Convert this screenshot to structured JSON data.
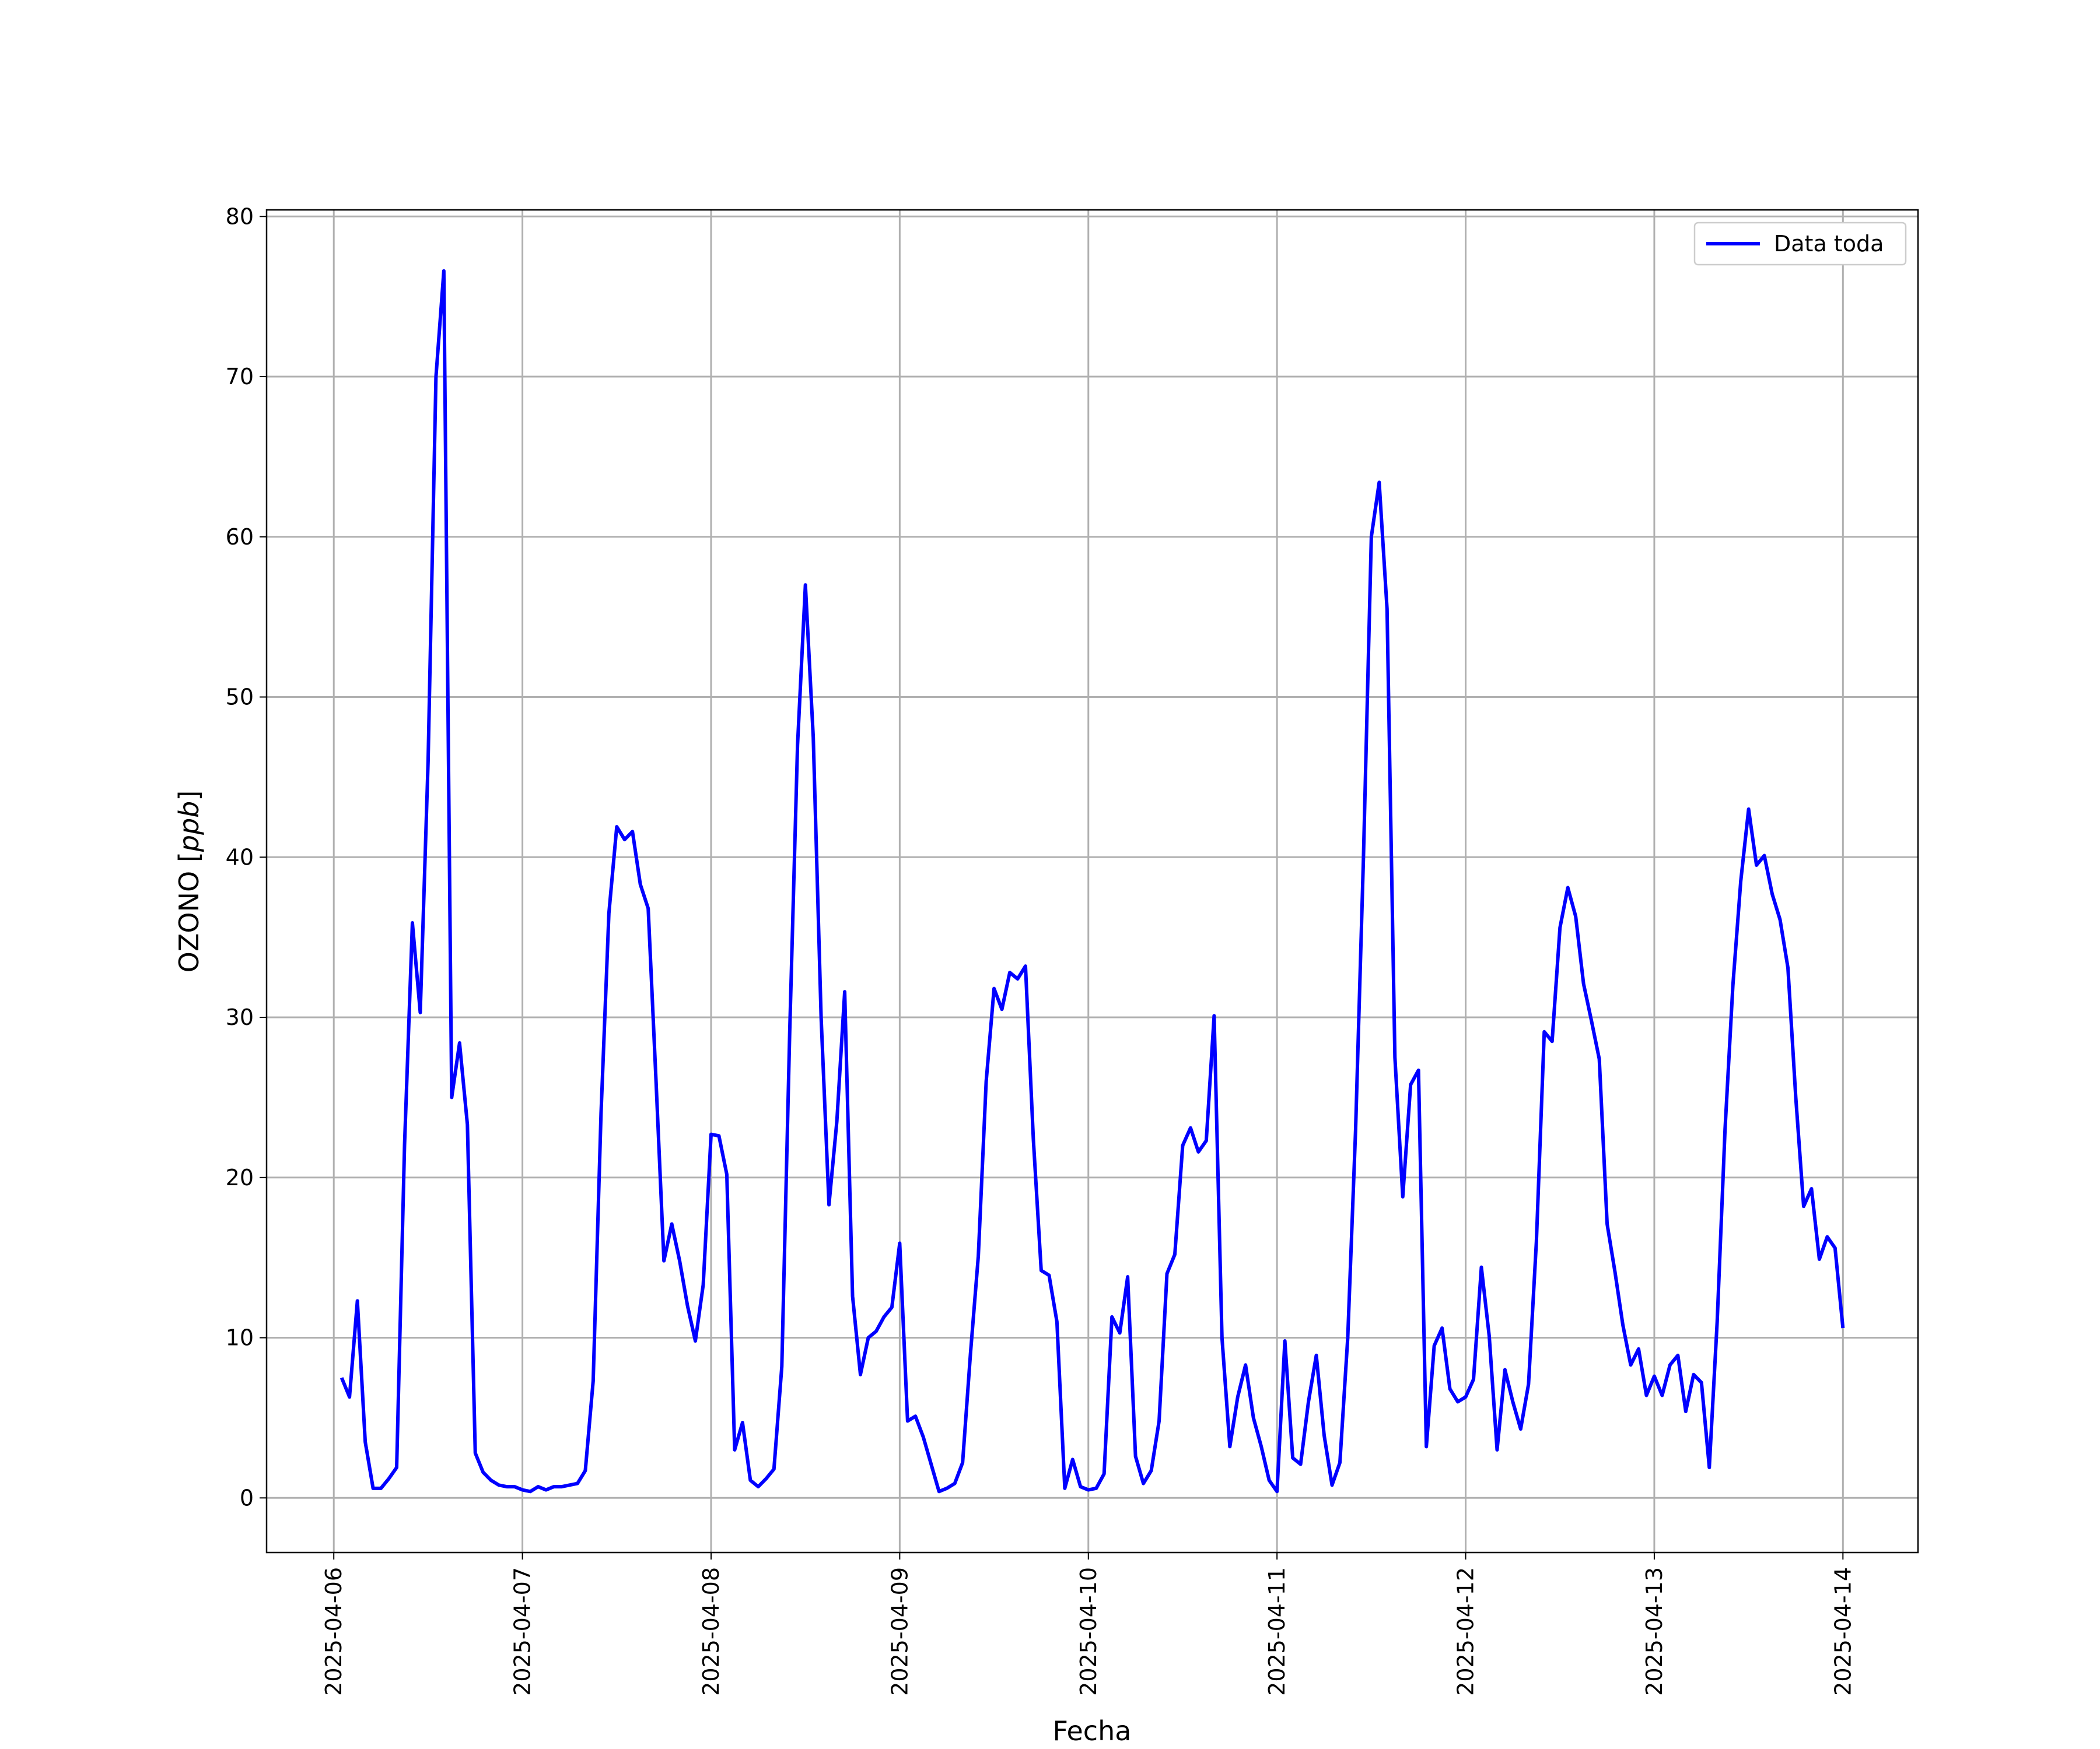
{
  "chart_data": {
    "type": "line",
    "xlabel": "Fecha",
    "ylabel": "OZONO [ppb]",
    "x": [
      "2025-04-06T01:00",
      "2025-04-06T02:00",
      "2025-04-06T03:00",
      "2025-04-06T04:00",
      "2025-04-06T05:00",
      "2025-04-06T06:00",
      "2025-04-06T07:00",
      "2025-04-06T08:00",
      "2025-04-06T09:00",
      "2025-04-06T10:00",
      "2025-04-06T11:00",
      "2025-04-06T12:00",
      "2025-04-06T13:00",
      "2025-04-06T14:00",
      "2025-04-06T15:00",
      "2025-04-06T16:00",
      "2025-04-06T17:00",
      "2025-04-06T18:00",
      "2025-04-06T19:00",
      "2025-04-06T20:00",
      "2025-04-06T21:00",
      "2025-04-06T22:00",
      "2025-04-06T23:00",
      "2025-04-07T00:00",
      "2025-04-07T01:00",
      "2025-04-07T02:00",
      "2025-04-07T03:00",
      "2025-04-07T04:00",
      "2025-04-07T05:00",
      "2025-04-07T06:00",
      "2025-04-07T07:00",
      "2025-04-07T08:00",
      "2025-04-07T09:00",
      "2025-04-07T10:00",
      "2025-04-07T11:00",
      "2025-04-07T12:00",
      "2025-04-07T13:00",
      "2025-04-07T14:00",
      "2025-04-07T15:00",
      "2025-04-07T16:00",
      "2025-04-07T17:00",
      "2025-04-07T18:00",
      "2025-04-07T19:00",
      "2025-04-07T20:00",
      "2025-04-07T21:00",
      "2025-04-07T22:00",
      "2025-04-07T23:00",
      "2025-04-08T00:00",
      "2025-04-08T01:00",
      "2025-04-08T02:00",
      "2025-04-08T03:00",
      "2025-04-08T04:00",
      "2025-04-08T05:00",
      "2025-04-08T06:00",
      "2025-04-08T07:00",
      "2025-04-08T08:00",
      "2025-04-08T09:00",
      "2025-04-08T10:00",
      "2025-04-08T11:00",
      "2025-04-08T12:00",
      "2025-04-08T13:00",
      "2025-04-08T14:00",
      "2025-04-08T15:00",
      "2025-04-08T16:00",
      "2025-04-08T17:00",
      "2025-04-08T18:00",
      "2025-04-08T19:00",
      "2025-04-08T20:00",
      "2025-04-08T21:00",
      "2025-04-08T22:00",
      "2025-04-08T23:00",
      "2025-04-09T00:00",
      "2025-04-09T01:00",
      "2025-04-09T02:00",
      "2025-04-09T03:00",
      "2025-04-09T04:00",
      "2025-04-09T05:00",
      "2025-04-09T06:00",
      "2025-04-09T07:00",
      "2025-04-09T08:00",
      "2025-04-09T09:00",
      "2025-04-09T10:00",
      "2025-04-09T11:00",
      "2025-04-09T12:00",
      "2025-04-09T13:00",
      "2025-04-09T14:00",
      "2025-04-09T15:00",
      "2025-04-09T16:00",
      "2025-04-09T17:00",
      "2025-04-09T18:00",
      "2025-04-09T19:00",
      "2025-04-09T20:00",
      "2025-04-09T21:00",
      "2025-04-09T22:00",
      "2025-04-09T23:00",
      "2025-04-10T00:00",
      "2025-04-10T01:00",
      "2025-04-10T02:00",
      "2025-04-10T03:00",
      "2025-04-10T04:00",
      "2025-04-10T05:00",
      "2025-04-10T06:00",
      "2025-04-10T07:00",
      "2025-04-10T08:00",
      "2025-04-10T09:00",
      "2025-04-10T10:00",
      "2025-04-10T11:00",
      "2025-04-10T12:00",
      "2025-04-10T13:00",
      "2025-04-10T14:00",
      "2025-04-10T15:00",
      "2025-04-10T16:00",
      "2025-04-10T17:00",
      "2025-04-10T18:00",
      "2025-04-10T19:00",
      "2025-04-10T20:00",
      "2025-04-10T21:00",
      "2025-04-10T22:00",
      "2025-04-10T23:00",
      "2025-04-11T00:00",
      "2025-04-11T01:00",
      "2025-04-11T02:00",
      "2025-04-11T03:00",
      "2025-04-11T04:00",
      "2025-04-11T05:00",
      "2025-04-11T06:00",
      "2025-04-11T07:00",
      "2025-04-11T08:00",
      "2025-04-11T09:00",
      "2025-04-11T10:00",
      "2025-04-11T11:00",
      "2025-04-11T12:00",
      "2025-04-11T13:00",
      "2025-04-11T14:00",
      "2025-04-11T15:00",
      "2025-04-11T16:00",
      "2025-04-11T17:00",
      "2025-04-11T18:00",
      "2025-04-11T19:00",
      "2025-04-11T20:00",
      "2025-04-11T21:00",
      "2025-04-11T22:00",
      "2025-04-11T23:00",
      "2025-04-12T00:00",
      "2025-04-12T01:00",
      "2025-04-12T02:00",
      "2025-04-12T03:00",
      "2025-04-12T04:00",
      "2025-04-12T05:00",
      "2025-04-12T06:00",
      "2025-04-12T07:00",
      "2025-04-12T08:00",
      "2025-04-12T09:00",
      "2025-04-12T10:00",
      "2025-04-12T11:00",
      "2025-04-12T12:00",
      "2025-04-12T13:00",
      "2025-04-12T14:00",
      "2025-04-12T15:00",
      "2025-04-12T16:00",
      "2025-04-12T17:00",
      "2025-04-12T18:00",
      "2025-04-12T19:00",
      "2025-04-12T20:00",
      "2025-04-12T21:00",
      "2025-04-12T22:00",
      "2025-04-12T23:00",
      "2025-04-13T00:00",
      "2025-04-13T01:00",
      "2025-04-13T02:00",
      "2025-04-13T03:00",
      "2025-04-13T04:00",
      "2025-04-13T05:00",
      "2025-04-13T06:00",
      "2025-04-13T07:00",
      "2025-04-13T08:00",
      "2025-04-13T09:00",
      "2025-04-13T10:00",
      "2025-04-13T11:00",
      "2025-04-13T12:00",
      "2025-04-13T13:00",
      "2025-04-13T14:00",
      "2025-04-13T15:00",
      "2025-04-13T16:00",
      "2025-04-13T17:00",
      "2025-04-13T18:00",
      "2025-04-13T19:00",
      "2025-04-13T20:00",
      "2025-04-13T21:00",
      "2025-04-13T22:00",
      "2025-04-13T23:00",
      "2025-04-14T00:00"
    ],
    "series": [
      {
        "name": "Data toda",
        "color": "#0000ff",
        "values": [
          7.5,
          6.3,
          12.3,
          3.5,
          0.6,
          0.6,
          1.2,
          1.9,
          22,
          35.9,
          30.3,
          46,
          70,
          76.6,
          25,
          28.4,
          23.3,
          2.8,
          1.6,
          1.1,
          0.8,
          0.7,
          0.7,
          0.5,
          0.4,
          0.7,
          0.5,
          0.7,
          0.7,
          0.8,
          0.9,
          1.7,
          7.3,
          24,
          36.5,
          41.9,
          41.1,
          41.6,
          38.3,
          36.8,
          26,
          14.8,
          17.1,
          14.8,
          12,
          9.8,
          13.3,
          22.7,
          22.6,
          20.2,
          3.0,
          4.7,
          1.1,
          0.7,
          1.2,
          1.8,
          8.2,
          29,
          47,
          57,
          47.5,
          30,
          18.3,
          23.5,
          31.6,
          12.6,
          7.7,
          10,
          10.4,
          11.3,
          11.9,
          15.9,
          4.8,
          5.1,
          3.8,
          2.1,
          0.4,
          0.6,
          0.9,
          2.2,
          9,
          15.1,
          26,
          31.8,
          30.5,
          32.8,
          32.4,
          33.2,
          22.4,
          14.2,
          13.9,
          11,
          0.6,
          2.4,
          0.7,
          0.5,
          0.6,
          1.5,
          11.3,
          10.3,
          13.8,
          2.6,
          0.9,
          1.7,
          4.8,
          14,
          15.2,
          22,
          23.1,
          21.6,
          22.3,
          30.1,
          10,
          3.2,
          6.3,
          8.3,
          5,
          3.2,
          1.1,
          0.4,
          9.8,
          2.5,
          2.1,
          6,
          8.9,
          3.9,
          0.8,
          2.2,
          10,
          23,
          40,
          60,
          63.4,
          55.5,
          27.5,
          18.8,
          25.8,
          26.7,
          3.2,
          9.5,
          10.6,
          6.8,
          6,
          6.3,
          7.4,
          14.4,
          10.1,
          3,
          8,
          6,
          4.3,
          7.1,
          16,
          29.1,
          28.5,
          35.6,
          38.1,
          36.3,
          32.1,
          29.8,
          27.4,
          17.1,
          14.1,
          10.8,
          8.3,
          9.3,
          6.4,
          7.6,
          6.4,
          8.3,
          8.9,
          5.4,
          7.7,
          7.2,
          1.9,
          11,
          23,
          32,
          38.5,
          43,
          39.5,
          40.1,
          37.7,
          36.1,
          33.1,
          25,
          18.2,
          19.3,
          14.9,
          16.3,
          15.6,
          10.6
        ]
      }
    ],
    "xlim": [
      "2025-04-05T15:27",
      "2025-04-14T09:33"
    ],
    "xticks": [
      "2025-04-06",
      "2025-04-07",
      "2025-04-08",
      "2025-04-09",
      "2025-04-10",
      "2025-04-11",
      "2025-04-12",
      "2025-04-13",
      "2025-04-14"
    ],
    "ylim": [
      -3.41,
      80.41
    ],
    "yticks": [
      0,
      10,
      20,
      30,
      40,
      50,
      60,
      70,
      80
    ],
    "grid": true,
    "legend": "upper right"
  }
}
